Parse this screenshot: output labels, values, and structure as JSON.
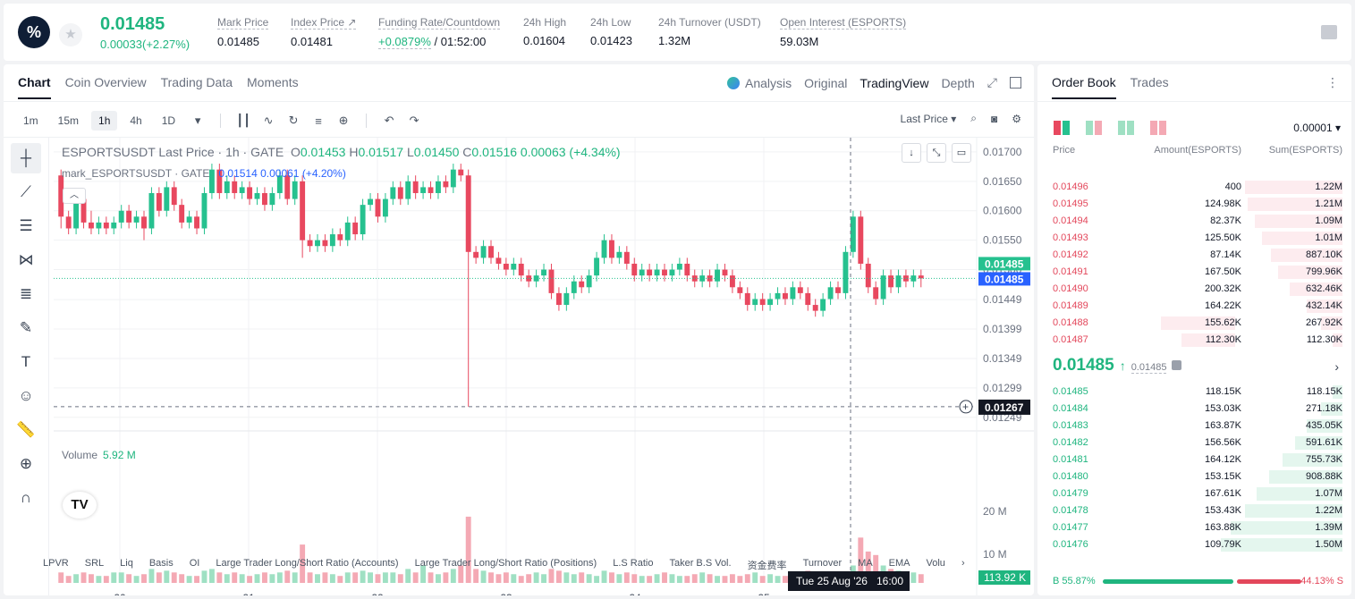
{
  "header": {
    "last_price": "0.01485",
    "change": "0.00033(+2.27%)",
    "stats": [
      {
        "label": "Mark Price",
        "value": "0.01485"
      },
      {
        "label": "Index Price ↗",
        "value": "0.01481"
      },
      {
        "label": "Funding Rate/Countdown",
        "value_green": "+0.0879%",
        "value_rest": " / 01:52:00"
      },
      {
        "label": "24h High",
        "value": "0.01604"
      },
      {
        "label": "24h Low",
        "value": "0.01423"
      },
      {
        "label": "24h Turnover (USDT)",
        "value": "1.32M"
      },
      {
        "label": "Open Interest (ESPORTS)",
        "value": "59.03M"
      }
    ]
  },
  "chart_tabs": [
    "Chart",
    "Coin Overview",
    "Trading Data",
    "Moments"
  ],
  "view_tabs": [
    "Analysis",
    "Original",
    "TradingView",
    "Depth"
  ],
  "timeframes": [
    "1m",
    "15m",
    "1h",
    "4h",
    "1D"
  ],
  "price_type": "Last Price ▾",
  "legend": {
    "symbol": "ESPORTSUSDT Last Price · 1h · GATE",
    "o_label": "O",
    "o": "0.01453",
    "h_label": "H",
    "h": "0.01517",
    "l_label": "L",
    "l": "0.01450",
    "c_label": "C",
    "c": "0.01516",
    "chg": "0.00063 (+4.34%)",
    "mark_name": "mark_ESPORTSUSDT · GATE",
    "mark_values": "0.01514  0.00061 (+4.20%)"
  },
  "volume_legend": {
    "label": "Volume",
    "value": "5.92 M"
  },
  "indicators": [
    "LPVR",
    "SRL",
    "Liq",
    "Basis",
    "OI",
    "Large Trader Long/Short Ratio (Accounts)",
    "Large Trader Long/Short Ratio (Positions)",
    "L.S Ratio",
    "Taker B.S Vol.",
    "资金费率",
    "Turnover",
    "MA",
    "EMA",
    "Volu"
  ],
  "chart_data": {
    "type": "candlestick",
    "price_axis": [
      "0.01700",
      "0.01650",
      "0.01600",
      "0.01550",
      "0.01500",
      "0.01449",
      "0.01399",
      "0.01349",
      "0.01299",
      "0.01249"
    ],
    "ylim": [
      0.01235,
      0.01712
    ],
    "x_ticks": [
      "20",
      "21",
      "22",
      "23",
      "24",
      "25"
    ],
    "volume_axis": [
      "20 M",
      "10 M"
    ],
    "last_price_label": "0.01485",
    "mark_price_label": "0.01485",
    "crosshair_price": "0.01267",
    "crosshair_time": "Tue 25 Aug '26",
    "crosshair_hour": "16:00",
    "volume_current": "113.92 K",
    "candles": [
      [
        0.0166,
        0.0159,
        0.0167,
        0.0157
      ],
      [
        0.0159,
        0.0157,
        0.016,
        0.0156
      ],
      [
        0.0157,
        0.0162,
        0.0163,
        0.0156
      ],
      [
        0.0162,
        0.0158,
        0.0163,
        0.0157
      ],
      [
        0.0158,
        0.0157,
        0.016,
        0.0156
      ],
      [
        0.0157,
        0.0158,
        0.0159,
        0.0156
      ],
      [
        0.0158,
        0.0157,
        0.0159,
        0.0156
      ],
      [
        0.0157,
        0.0158,
        0.0159,
        0.0156
      ],
      [
        0.0158,
        0.016,
        0.0161,
        0.0157
      ],
      [
        0.016,
        0.0158,
        0.0161,
        0.0157
      ],
      [
        0.0158,
        0.0159,
        0.016,
        0.0157
      ],
      [
        0.0159,
        0.0157,
        0.016,
        0.0155
      ],
      [
        0.0157,
        0.0163,
        0.0164,
        0.0156
      ],
      [
        0.0163,
        0.016,
        0.0164,
        0.0159
      ],
      [
        0.016,
        0.0164,
        0.0165,
        0.0159
      ],
      [
        0.0164,
        0.0161,
        0.0165,
        0.016
      ],
      [
        0.0161,
        0.0158,
        0.0162,
        0.0157
      ],
      [
        0.0158,
        0.0159,
        0.016,
        0.0157
      ],
      [
        0.0159,
        0.0157,
        0.016,
        0.0156
      ],
      [
        0.0157,
        0.0163,
        0.0164,
        0.0156
      ],
      [
        0.0163,
        0.0167,
        0.0168,
        0.0162
      ],
      [
        0.0167,
        0.0163,
        0.0168,
        0.0162
      ],
      [
        0.0163,
        0.0165,
        0.0166,
        0.0162
      ],
      [
        0.0165,
        0.0163,
        0.0166,
        0.0162
      ],
      [
        0.0163,
        0.0164,
        0.0165,
        0.0162
      ],
      [
        0.0164,
        0.0162,
        0.0165,
        0.0161
      ],
      [
        0.0162,
        0.0163,
        0.0164,
        0.0161
      ],
      [
        0.0163,
        0.0161,
        0.0164,
        0.016
      ],
      [
        0.0161,
        0.0163,
        0.0164,
        0.016
      ],
      [
        0.0163,
        0.0166,
        0.0167,
        0.0162
      ],
      [
        0.0166,
        0.0162,
        0.0167,
        0.0161
      ],
      [
        0.0162,
        0.0165,
        0.0166,
        0.0161
      ],
      [
        0.0165,
        0.0155,
        0.0166,
        0.0152
      ],
      [
        0.0155,
        0.0154,
        0.0156,
        0.0153
      ],
      [
        0.0154,
        0.0155,
        0.0156,
        0.0153
      ],
      [
        0.0155,
        0.0154,
        0.0156,
        0.0153
      ],
      [
        0.0154,
        0.0156,
        0.0157,
        0.0153
      ],
      [
        0.0156,
        0.0155,
        0.0157,
        0.0154
      ],
      [
        0.0155,
        0.0158,
        0.0159,
        0.0154
      ],
      [
        0.0158,
        0.0156,
        0.0159,
        0.0155
      ],
      [
        0.0156,
        0.0161,
        0.0162,
        0.0155
      ],
      [
        0.0161,
        0.0162,
        0.0163,
        0.016
      ],
      [
        0.0162,
        0.0159,
        0.0163,
        0.0158
      ],
      [
        0.0159,
        0.0162,
        0.0163,
        0.0158
      ],
      [
        0.0162,
        0.0164,
        0.0165,
        0.0161
      ],
      [
        0.0164,
        0.0162,
        0.0165,
        0.0161
      ],
      [
        0.0162,
        0.0165,
        0.0166,
        0.0161
      ],
      [
        0.0165,
        0.0163,
        0.0166,
        0.0162
      ],
      [
        0.0163,
        0.0164,
        0.0165,
        0.0162
      ],
      [
        0.0164,
        0.0163,
        0.0165,
        0.0162
      ],
      [
        0.0163,
        0.0165,
        0.0166,
        0.0162
      ],
      [
        0.0165,
        0.0164,
        0.0166,
        0.0163
      ],
      [
        0.0164,
        0.0167,
        0.0168,
        0.0163
      ],
      [
        0.0167,
        0.0166,
        0.0168,
        0.0165
      ],
      [
        0.0166,
        0.0153,
        0.0167,
        0.01267
      ],
      [
        0.0153,
        0.0152,
        0.0154,
        0.0151
      ],
      [
        0.0152,
        0.0154,
        0.0155,
        0.0151
      ],
      [
        0.0154,
        0.0152,
        0.0155,
        0.0151
      ],
      [
        0.0152,
        0.0151,
        0.0153,
        0.015
      ],
      [
        0.0151,
        0.015,
        0.0152,
        0.0149
      ],
      [
        0.015,
        0.0151,
        0.0152,
        0.0149
      ],
      [
        0.0151,
        0.0149,
        0.0152,
        0.0148
      ],
      [
        0.0149,
        0.0148,
        0.015,
        0.0147
      ],
      [
        0.0148,
        0.0149,
        0.015,
        0.0147
      ],
      [
        0.0149,
        0.015,
        0.0151,
        0.0148
      ],
      [
        0.015,
        0.0146,
        0.0151,
        0.0145
      ],
      [
        0.0146,
        0.0144,
        0.0147,
        0.0143
      ],
      [
        0.0144,
        0.0146,
        0.0147,
        0.0143
      ],
      [
        0.0146,
        0.0148,
        0.0149,
        0.0145
      ],
      [
        0.0148,
        0.0147,
        0.0149,
        0.0146
      ],
      [
        0.0147,
        0.0149,
        0.015,
        0.0146
      ],
      [
        0.0149,
        0.0152,
        0.0153,
        0.0148
      ],
      [
        0.0152,
        0.0155,
        0.0156,
        0.0151
      ],
      [
        0.0155,
        0.0152,
        0.0156,
        0.0151
      ],
      [
        0.0152,
        0.0153,
        0.0154,
        0.0151
      ],
      [
        0.0153,
        0.0151,
        0.0154,
        0.015
      ],
      [
        0.0151,
        0.0149,
        0.0152,
        0.0148
      ],
      [
        0.0149,
        0.015,
        0.0151,
        0.0148
      ],
      [
        0.015,
        0.0149,
        0.0151,
        0.0148
      ],
      [
        0.0149,
        0.015,
        0.0151,
        0.0148
      ],
      [
        0.015,
        0.0149,
        0.0151,
        0.0148
      ],
      [
        0.0149,
        0.015,
        0.0151,
        0.0148
      ],
      [
        0.015,
        0.0151,
        0.0152,
        0.0149
      ],
      [
        0.0151,
        0.0149,
        0.0152,
        0.0148
      ],
      [
        0.0149,
        0.0148,
        0.015,
        0.0147
      ],
      [
        0.0148,
        0.0149,
        0.015,
        0.0147
      ],
      [
        0.0149,
        0.0148,
        0.015,
        0.0147
      ],
      [
        0.0148,
        0.015,
        0.0151,
        0.0147
      ],
      [
        0.015,
        0.0149,
        0.0151,
        0.0148
      ],
      [
        0.0149,
        0.0147,
        0.015,
        0.0146
      ],
      [
        0.0147,
        0.0146,
        0.0148,
        0.0145
      ],
      [
        0.0146,
        0.0144,
        0.0147,
        0.0143
      ],
      [
        0.0144,
        0.0145,
        0.0146,
        0.0143
      ],
      [
        0.0145,
        0.0144,
        0.0146,
        0.0143
      ],
      [
        0.0144,
        0.0145,
        0.0146,
        0.0143
      ],
      [
        0.0145,
        0.0146,
        0.0147,
        0.0144
      ],
      [
        0.0146,
        0.0145,
        0.0147,
        0.0144
      ],
      [
        0.0145,
        0.0147,
        0.0148,
        0.0144
      ],
      [
        0.0147,
        0.0146,
        0.0148,
        0.0145
      ],
      [
        0.0146,
        0.0144,
        0.0147,
        0.0143
      ],
      [
        0.0144,
        0.0143,
        0.0145,
        0.0142
      ],
      [
        0.0143,
        0.0145,
        0.0146,
        0.0142
      ],
      [
        0.0145,
        0.0147,
        0.0148,
        0.0144
      ],
      [
        0.0147,
        0.0146,
        0.0148,
        0.0145
      ],
      [
        0.0146,
        0.0153,
        0.0154,
        0.0145
      ],
      [
        0.0153,
        0.0159,
        0.016,
        0.0152
      ],
      [
        0.0159,
        0.0151,
        0.016,
        0.015
      ],
      [
        0.0151,
        0.0147,
        0.0152,
        0.0146
      ],
      [
        0.0147,
        0.0145,
        0.0148,
        0.0144
      ],
      [
        0.0145,
        0.0149,
        0.015,
        0.0144
      ],
      [
        0.0149,
        0.0147,
        0.015,
        0.0146
      ],
      [
        0.0147,
        0.0149,
        0.015,
        0.0146
      ],
      [
        0.0149,
        0.0148,
        0.015,
        0.0147
      ],
      [
        0.0148,
        0.0149,
        0.015,
        0.0147
      ],
      [
        0.0149,
        0.01485,
        0.015,
        0.0147
      ]
    ],
    "volumes": [
      3,
      2,
      2.5,
      3,
      2.5,
      2,
      2,
      3,
      3,
      2.5,
      2,
      2.5,
      4,
      3,
      3.5,
      3,
      2.5,
      2,
      2,
      3.5,
      4,
      3,
      2.5,
      3,
      2.5,
      2,
      2.5,
      3,
      2.5,
      3,
      3.5,
      3,
      11,
      3,
      2.5,
      3,
      2.5,
      2,
      3,
      3,
      3.5,
      3,
      2.5,
      3,
      3,
      2.5,
      4,
      3,
      5,
      3,
      2.5,
      3,
      4,
      5,
      19,
      4,
      3.5,
      3,
      2.5,
      3,
      2.5,
      2,
      2.5,
      3,
      2.5,
      4,
      3.5,
      3,
      2.5,
      3,
      2.5,
      2,
      3.5,
      3,
      2.5,
      3,
      2.5,
      2,
      2,
      2.5,
      3,
      2.5,
      2,
      2,
      2.5,
      3,
      2.5,
      2,
      2,
      2.5,
      2,
      2.5,
      3,
      2,
      2.5,
      2,
      2,
      2.5,
      3,
      3.5,
      2.5,
      2,
      2.5,
      2,
      3,
      5,
      13,
      9,
      8,
      5,
      4,
      3.5,
      3,
      3,
      2.5,
      2.5,
      2,
      1
    ]
  },
  "orderbook": {
    "tabs": [
      "Order Book",
      "Trades"
    ],
    "precision": "0.00001 ▾",
    "headers": {
      "price": "Price",
      "amount": "Amount(ESPORTS)",
      "sum": "Sum(ESPORTS)"
    },
    "asks": [
      {
        "price": "0.01496",
        "amount": "400",
        "sum": "1.22M",
        "depth": 0.41,
        "qty": 0.0
      },
      {
        "price": "0.01495",
        "amount": "124.98K",
        "sum": "1.21M",
        "depth": 0.4,
        "qty": 0.0
      },
      {
        "price": "0.01494",
        "amount": "82.37K",
        "sum": "1.09M",
        "depth": 0.37,
        "qty": 0.0
      },
      {
        "price": "0.01493",
        "amount": "125.50K",
        "sum": "1.01M",
        "depth": 0.34,
        "qty": 0.0
      },
      {
        "price": "0.01492",
        "amount": "87.14K",
        "sum": "887.10K",
        "depth": 0.3,
        "qty": 0.0
      },
      {
        "price": "0.01491",
        "amount": "167.50K",
        "sum": "799.96K",
        "depth": 0.27,
        "qty": 0.0
      },
      {
        "price": "0.01490",
        "amount": "200.32K",
        "sum": "632.46K",
        "depth": 0.22,
        "qty": 0.0
      },
      {
        "price": "0.01489",
        "amount": "164.22K",
        "sum": "432.14K",
        "depth": 0.15,
        "qty": 0.0
      },
      {
        "price": "0.01488",
        "amount": "155.62K",
        "sum": "267.92K",
        "depth": 0.09,
        "qty": 0.55
      },
      {
        "price": "0.01487",
        "amount": "112.30K",
        "sum": "112.30K",
        "depth": 0.04,
        "qty": 0.4
      }
    ],
    "mid": {
      "price": "0.01485",
      "arrow": "↑",
      "mark": "0.01485"
    },
    "bids": [
      {
        "price": "0.01485",
        "amount": "118.15K",
        "sum": "118.15K",
        "depth": 0.04
      },
      {
        "price": "0.01484",
        "amount": "153.03K",
        "sum": "271.18K",
        "depth": 0.09
      },
      {
        "price": "0.01483",
        "amount": "163.87K",
        "sum": "435.05K",
        "depth": 0.15
      },
      {
        "price": "0.01482",
        "amount": "156.56K",
        "sum": "591.61K",
        "depth": 0.2
      },
      {
        "price": "0.01481",
        "amount": "164.12K",
        "sum": "755.73K",
        "depth": 0.25
      },
      {
        "price": "0.01480",
        "amount": "153.15K",
        "sum": "908.88K",
        "depth": 0.31
      },
      {
        "price": "0.01479",
        "amount": "167.61K",
        "sum": "1.07M",
        "depth": 0.36
      },
      {
        "price": "0.01478",
        "amount": "153.43K",
        "sum": "1.22M",
        "depth": 0.41
      },
      {
        "price": "0.01477",
        "amount": "163.88K",
        "sum": "1.39M",
        "depth": 0.47
      },
      {
        "price": "0.01476",
        "amount": "109.79K",
        "sum": "1.50M",
        "depth": 0.51
      }
    ],
    "buy_ratio": "B 55.87%",
    "sell_ratio": "44.13% S"
  },
  "colors": {
    "up": "#26c18f",
    "down": "#e8485f",
    "up_vol": "#9fe0c3",
    "down_vol": "#f4a9b4"
  }
}
